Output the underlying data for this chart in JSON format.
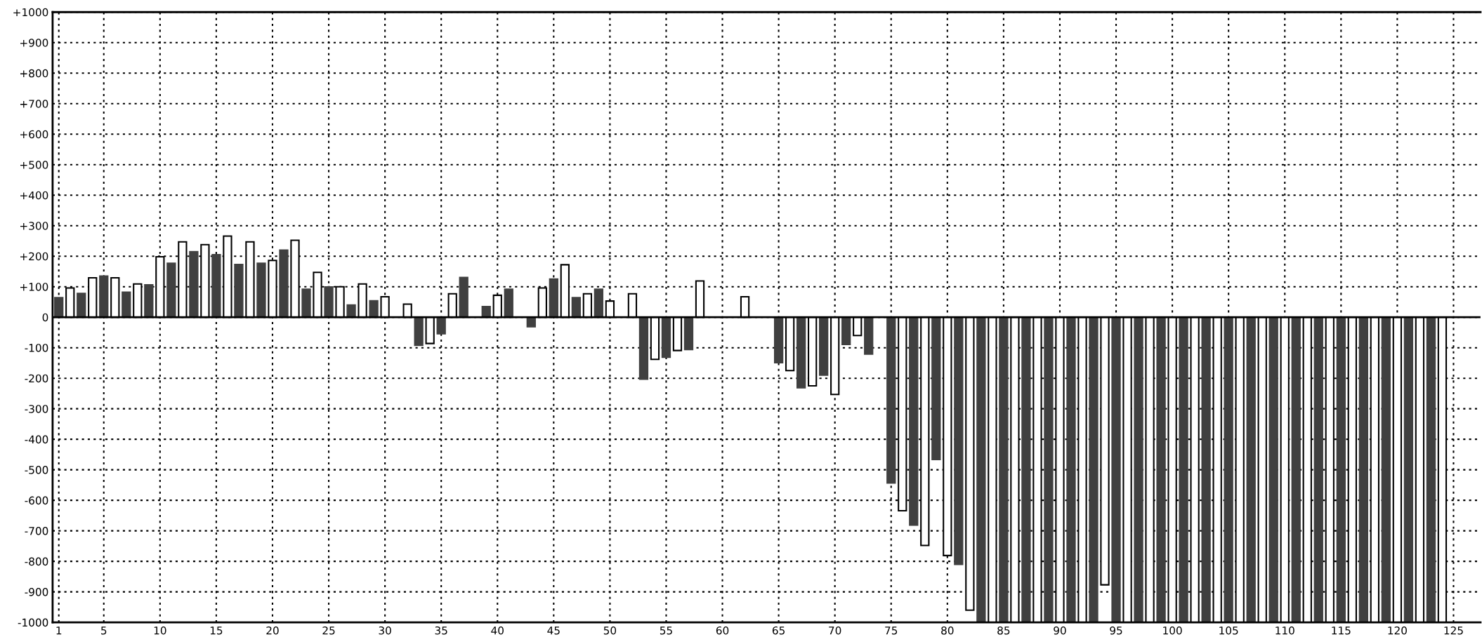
{
  "chart_data": {
    "type": "bar",
    "series": [
      {
        "color": "#404040",
        "x": [
          1,
          3,
          5,
          7,
          9,
          11,
          13,
          15,
          17,
          19,
          21,
          23,
          25,
          27,
          29,
          31,
          33,
          35,
          37,
          39,
          41,
          43,
          45,
          47,
          49,
          51,
          53,
          55,
          57,
          59,
          61,
          63,
          65,
          67,
          69,
          71,
          73,
          75,
          77,
          79,
          81,
          83,
          85,
          87,
          89,
          91,
          93,
          95,
          97,
          99,
          101,
          103,
          105,
          107,
          109,
          111,
          113,
          115,
          117,
          119,
          121,
          123
        ],
        "values": [
          64,
          78,
          135,
          82,
          106,
          177,
          215,
          205,
          173,
          177,
          220,
          92,
          99,
          40,
          54,
          0,
          -92,
          -54,
          130,
          35,
          92,
          -31,
          125,
          64,
          92,
          0,
          -203,
          -131,
          -106,
          0,
          0,
          0,
          -149,
          -231,
          -190,
          -89,
          -121,
          -543,
          -681,
          -466,
          -810,
          -1000,
          -1000,
          -1000,
          -1000,
          -1000,
          -1000,
          -1000,
          -1000,
          -1000,
          -1000,
          -1000,
          -1000,
          -1000,
          -1000,
          -1000,
          -1000,
          -1000,
          -1000,
          -1000,
          -1000,
          -1000
        ]
      },
      {
        "color": "#ffffff",
        "x": [
          2,
          4,
          6,
          8,
          10,
          12,
          14,
          16,
          18,
          20,
          22,
          24,
          26,
          28,
          30,
          32,
          34,
          36,
          38,
          40,
          42,
          44,
          46,
          48,
          50,
          52,
          54,
          56,
          58,
          60,
          62,
          64,
          66,
          68,
          70,
          72,
          74,
          76,
          78,
          80,
          82,
          84,
          86,
          88,
          90,
          92,
          94,
          96,
          98,
          100,
          102,
          104,
          106,
          108,
          110,
          112,
          114,
          116,
          118,
          120,
          122,
          124
        ],
        "values": [
          96,
          129,
          129,
          109,
          198,
          247,
          238,
          266,
          247,
          186,
          252,
          147,
          100,
          109,
          67,
          43,
          -86,
          77,
          0,
          72,
          0,
          96,
          172,
          77,
          53,
          77,
          -138,
          -109,
          119,
          0,
          67,
          0,
          -175,
          -225,
          -253,
          -60,
          0,
          -634,
          -748,
          -781,
          -960,
          -1000,
          -1000,
          -1000,
          -1000,
          -1000,
          -877,
          -1000,
          -1000,
          -1000,
          -1000,
          -1000,
          -1000,
          -1000,
          -1000,
          -1000,
          -1000,
          -1000,
          -1000,
          -1000,
          -1000,
          -1000
        ]
      }
    ],
    "xlim": [
      0.45,
      127.4
    ],
    "xticks": [
      1,
      5,
      10,
      15,
      20,
      25,
      30,
      35,
      40,
      45,
      50,
      55,
      60,
      65,
      70,
      75,
      80,
      85,
      90,
      95,
      100,
      105,
      110,
      115,
      120,
      125
    ],
    "ylim": [
      -1000,
      1000
    ],
    "yticks": [
      {
        "value": -1000,
        "label": "-1000"
      },
      {
        "value": -900,
        "label": "-900"
      },
      {
        "value": -800,
        "label": "-800"
      },
      {
        "value": -700,
        "label": "-700"
      },
      {
        "value": -600,
        "label": "-600"
      },
      {
        "value": -500,
        "label": "-500"
      },
      {
        "value": -400,
        "label": "-400"
      },
      {
        "value": -300,
        "label": "-300"
      },
      {
        "value": -200,
        "label": "-200"
      },
      {
        "value": -100,
        "label": "-100"
      },
      0,
      {
        "value": 100,
        "label": "+100"
      },
      {
        "value": 200,
        "label": "+200"
      },
      {
        "value": 300,
        "label": "+300"
      },
      {
        "value": 400,
        "label": "+400"
      },
      {
        "value": 500,
        "label": "+500"
      },
      {
        "value": 600,
        "label": "+600"
      },
      {
        "value": 700,
        "label": "+700"
      },
      {
        "value": 800,
        "label": "+800"
      },
      {
        "value": 900,
        "label": "+900"
      },
      {
        "value": 1000,
        "label": "+1000"
      }
    ],
    "ref_lines": [
      {
        "axis": "y",
        "value": 0,
        "color": "#000000",
        "line_style": "solid"
      }
    ],
    "grid": true
  }
}
